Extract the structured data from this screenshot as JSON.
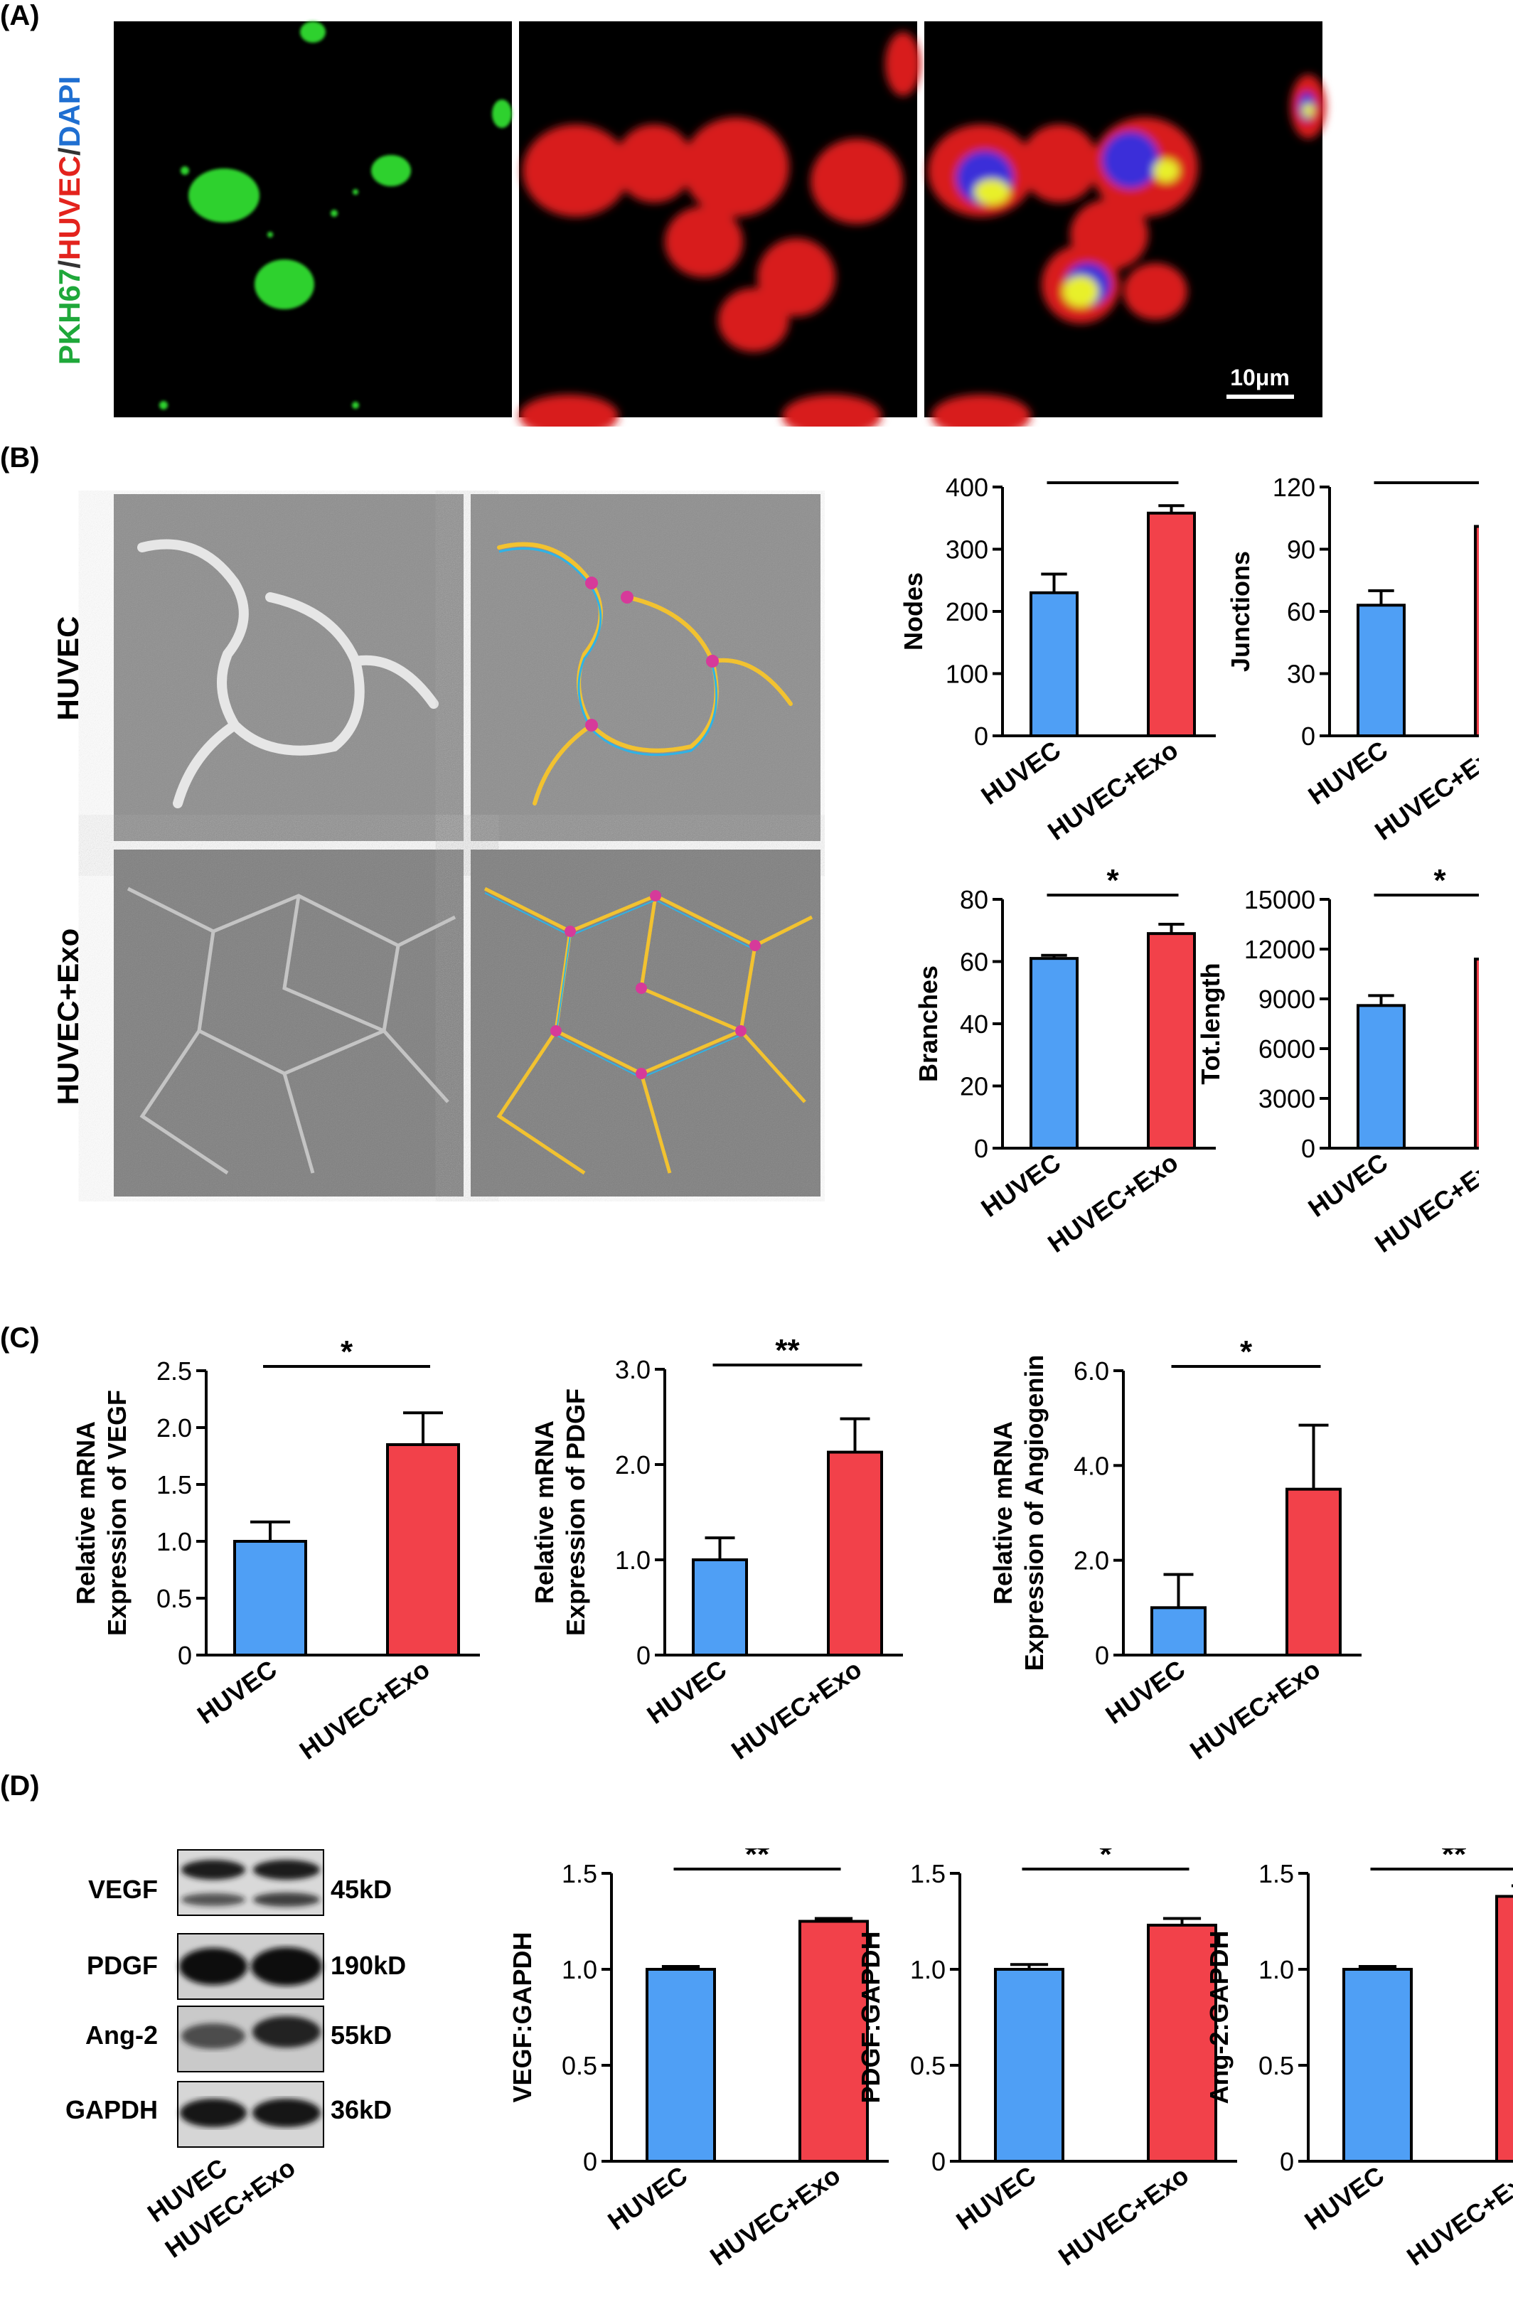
{
  "panels": {
    "a": "(A)",
    "b": "(B)",
    "c": "(C)",
    "d": "(D)"
  },
  "colors": {
    "huvec": "#4f9ff5",
    "exo": "#f2414a",
    "edge": "#000000"
  },
  "panelA": {
    "channel_label": {
      "pkh": "PKH67",
      "sep1": "/",
      "huvec": "HUVEC",
      "sep2": "/",
      "dapi": "DAPI"
    },
    "label_colors": {
      "pkh": "#1fa83a",
      "sep": "#333333",
      "huvec": "#e3231d",
      "dapi": "#1f6fd1"
    },
    "scale_bar": "10μm"
  },
  "panelB": {
    "row_labels": [
      "HUVEC",
      "HUVEC+Exo"
    ]
  },
  "panelD": {
    "proteins": [
      "VEGF",
      "PDGF",
      "Ang-2",
      "GAPDH"
    ],
    "sizes": [
      "45kD",
      "190kD",
      "55kD",
      "36kD"
    ],
    "lanes": [
      "HUVEC",
      "HUVEC+Exo"
    ]
  },
  "chart_data": [
    {
      "id": "b-nodes",
      "type": "bar",
      "categories": [
        "HUVEC",
        "HUVEC+Exo"
      ],
      "values": [
        230,
        358
      ],
      "errors": [
        30,
        12
      ],
      "ylabel": "Nodes",
      "ylim": [
        0,
        400
      ],
      "yticks": [
        "0",
        "100",
        "200",
        "300",
        "400"
      ],
      "significance": "*"
    },
    {
      "id": "b-junctions",
      "type": "bar",
      "categories": [
        "HUVEC",
        "HUVEC+Exo"
      ],
      "values": [
        63,
        101
      ],
      "errors": [
        7,
        2
      ],
      "ylabel": "Junctions",
      "ylim": [
        0,
        120
      ],
      "yticks": [
        "0",
        "30",
        "60",
        "90",
        "120"
      ],
      "significance": "*"
    },
    {
      "id": "b-branches",
      "type": "bar",
      "categories": [
        "HUVEC",
        "HUVEC+Exo"
      ],
      "values": [
        61,
        69
      ],
      "errors": [
        1,
        3
      ],
      "ylabel": "Branches",
      "ylim": [
        0,
        80
      ],
      "yticks": [
        "0",
        "20",
        "40",
        "60",
        "80"
      ],
      "significance": "*"
    },
    {
      "id": "b-totlength",
      "type": "bar",
      "categories": [
        "HUVEC",
        "HUVEC+Exo"
      ],
      "values": [
        8600,
        11400
      ],
      "errors": [
        600,
        350
      ],
      "ylabel": "Tot.length",
      "ylim": [
        0,
        15000
      ],
      "yticks": [
        "0",
        "3000",
        "6000",
        "9000",
        "12000",
        "15000"
      ],
      "significance": "*"
    },
    {
      "id": "c-vegf",
      "type": "bar",
      "categories": [
        "HUVEC",
        "HUVEC+Exo"
      ],
      "values": [
        1.0,
        1.85
      ],
      "errors": [
        0.17,
        0.28
      ],
      "ylabel": [
        "Relative mRNA",
        "Expression of VEGF"
      ],
      "ylim": [
        0,
        2.5
      ],
      "yticks": [
        "0",
        "0.5",
        "1.0",
        "1.5",
        "2.0",
        "2.5"
      ],
      "significance": "*"
    },
    {
      "id": "c-pdgf",
      "type": "bar",
      "categories": [
        "HUVEC",
        "HUVEC+Exo"
      ],
      "values": [
        1.0,
        2.13
      ],
      "errors": [
        0.23,
        0.35
      ],
      "ylabel": [
        "Relative mRNA",
        "Expression of PDGF"
      ],
      "ylim": [
        0,
        3.0
      ],
      "yticks": [
        "0",
        "1.0",
        "2.0",
        "3.0"
      ],
      "significance": "**"
    },
    {
      "id": "c-angiogenin",
      "type": "bar",
      "categories": [
        "HUVEC",
        "HUVEC+Exo"
      ],
      "values": [
        1.0,
        3.5
      ],
      "errors": [
        0.7,
        1.35
      ],
      "ylabel": [
        "Relative mRNA",
        "Expression of Angiogenin"
      ],
      "ylim": [
        0,
        6.0
      ],
      "yticks": [
        "0",
        "2.0",
        "4.0",
        "6.0"
      ],
      "significance": "*"
    },
    {
      "id": "d-vegf",
      "type": "bar",
      "categories": [
        "HUVEC",
        "HUVEC+Exo"
      ],
      "values": [
        1.0,
        1.25
      ],
      "errors": [
        0.015,
        0.015
      ],
      "ylabel": "VEGF:GAPDH",
      "ylim": [
        0,
        1.5
      ],
      "yticks": [
        "0",
        "0.5",
        "1.0",
        "1.5"
      ],
      "significance": "**"
    },
    {
      "id": "d-pdgf",
      "type": "bar",
      "categories": [
        "HUVEC",
        "HUVEC+Exo"
      ],
      "values": [
        1.0,
        1.23
      ],
      "errors": [
        0.025,
        0.035
      ],
      "ylabel": "PDGF:GAPDH",
      "ylim": [
        0,
        1.5
      ],
      "yticks": [
        "0",
        "0.5",
        "1.0",
        "1.5"
      ],
      "significance": "*"
    },
    {
      "id": "d-ang2",
      "type": "bar",
      "categories": [
        "HUVEC",
        "HUVEC+Exo"
      ],
      "values": [
        1.0,
        1.38
      ],
      "errors": [
        0.015,
        0.055
      ],
      "ylabel": "Ang-2:GAPDH",
      "ylim": [
        0,
        1.5
      ],
      "yticks": [
        "0",
        "0.5",
        "1.0",
        "1.5"
      ],
      "significance": "**"
    }
  ]
}
